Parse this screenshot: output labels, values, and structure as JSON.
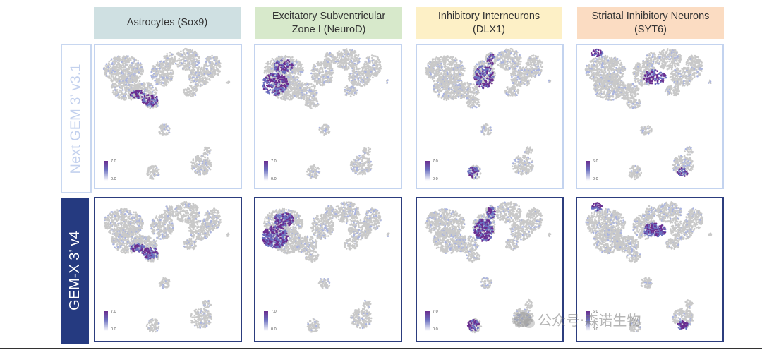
{
  "columns": [
    {
      "label": "Astrocytes (Sox9)",
      "bg": "#cfe0e2"
    },
    {
      "label": "Excitatory Subventricular Zone I (NeuroD)",
      "bg": "#d7e9cb"
    },
    {
      "label": "Inhibitory Interneurons (DLX1)",
      "bg": "#fdf0c6"
    },
    {
      "label": "Striatal Inhibitory Neurons (SYT6)",
      "bg": "#fbdcc2"
    }
  ],
  "rows": [
    {
      "label": "Next GEM 3’ v3.1"
    },
    {
      "label": "GEM-X 3’ v4"
    }
  ],
  "scale": [
    {
      "max": "7.0",
      "min": "0.0"
    },
    {
      "max": "7.0",
      "min": "0.0"
    },
    {
      "max": "7.0",
      "min": "0.0"
    },
    {
      "max": "6.0",
      "min": "0.0"
    }
  ],
  "colors": {
    "base": "#c9c9c9",
    "low": "#aab4e0",
    "mid": "#6b70c0",
    "high": "#6a2d8f",
    "row1_border": "#c3d3ef",
    "row2_border": "#2c3d7e"
  },
  "watermark": "公众号·森诺生物"
}
